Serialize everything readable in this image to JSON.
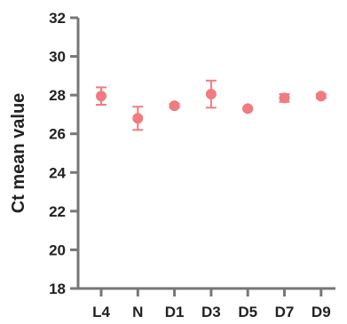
{
  "chart_data": {
    "type": "scatter",
    "xlabel": "",
    "ylabel": "Ct mean value",
    "ylim": [
      18,
      32
    ],
    "yticks": [
      18,
      20,
      22,
      24,
      26,
      28,
      30,
      32
    ],
    "categories": [
      "L4",
      "N",
      "D1",
      "D3",
      "D5",
      "D7",
      "D9"
    ],
    "values": [
      27.95,
      26.8,
      27.45,
      28.05,
      27.3,
      27.85,
      27.95
    ],
    "error": [
      0.45,
      0.6,
      0.1,
      0.7,
      0.05,
      0.2,
      0.1
    ],
    "marker_color": "#f07b80",
    "axis_color": "#777777",
    "grid": false,
    "legend": "none"
  }
}
